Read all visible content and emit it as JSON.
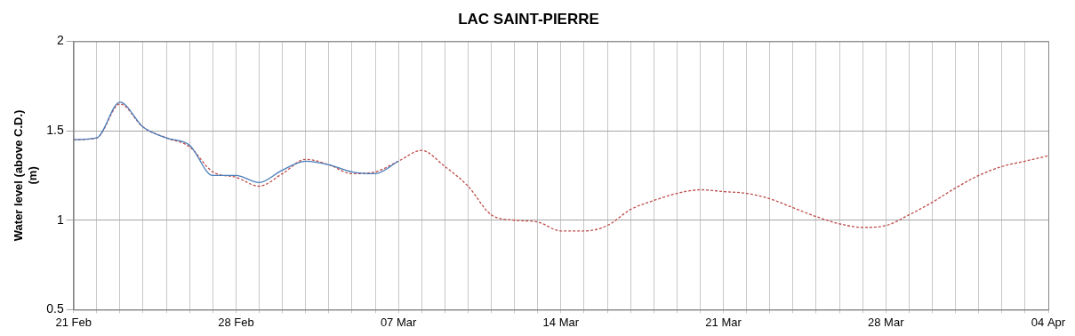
{
  "chart_data": {
    "type": "line",
    "title": "LAC SAINT-PIERRE",
    "ylabel": [
      "Water level (above C.D.)",
      "(m)"
    ],
    "categories": [
      "21 Feb",
      null,
      null,
      null,
      null,
      null,
      null,
      "28 Feb",
      null,
      null,
      null,
      null,
      null,
      null,
      "07 Mar",
      null,
      null,
      null,
      null,
      null,
      null,
      "14 Mar",
      null,
      null,
      null,
      null,
      null,
      null,
      "21 Mar",
      null,
      null,
      null,
      null,
      null,
      null,
      "28 Mar",
      null,
      null,
      null,
      null,
      null,
      null,
      "04 Apr"
    ],
    "series": [
      {
        "color": "#4a7ebb",
        "line_style": "solid",
        "values": [
          1.45,
          1.46,
          1.66,
          1.52,
          1.46,
          1.42,
          1.25,
          1.25,
          1.21,
          1.28,
          1.33,
          1.31,
          1.27,
          1.26,
          1.33,
          null,
          null,
          null,
          null,
          null,
          null,
          null,
          null,
          null,
          null,
          null,
          null,
          null,
          null,
          null,
          null,
          null,
          null,
          null,
          null,
          null,
          null,
          null,
          null,
          null,
          null,
          null,
          null
        ]
      },
      {
        "color": "#be4b48",
        "line_style": "dashed",
        "values": [
          1.45,
          1.46,
          1.65,
          1.52,
          1.46,
          1.41,
          1.27,
          1.24,
          1.19,
          1.26,
          1.34,
          1.31,
          1.26,
          1.27,
          1.33,
          1.39,
          1.3,
          1.19,
          1.03,
          1.0,
          0.99,
          0.94,
          0.94,
          0.97,
          1.06,
          1.11,
          1.15,
          1.17,
          1.16,
          1.15,
          1.12,
          1.07,
          1.02,
          0.98,
          0.96,
          0.97,
          1.03,
          1.1,
          1.18,
          1.25,
          1.3,
          1.33,
          1.36
        ]
      }
    ],
    "ylim": [
      0.5,
      2
    ],
    "yticks": [
      0.5,
      1,
      1.5,
      2
    ],
    "grid": true
  }
}
